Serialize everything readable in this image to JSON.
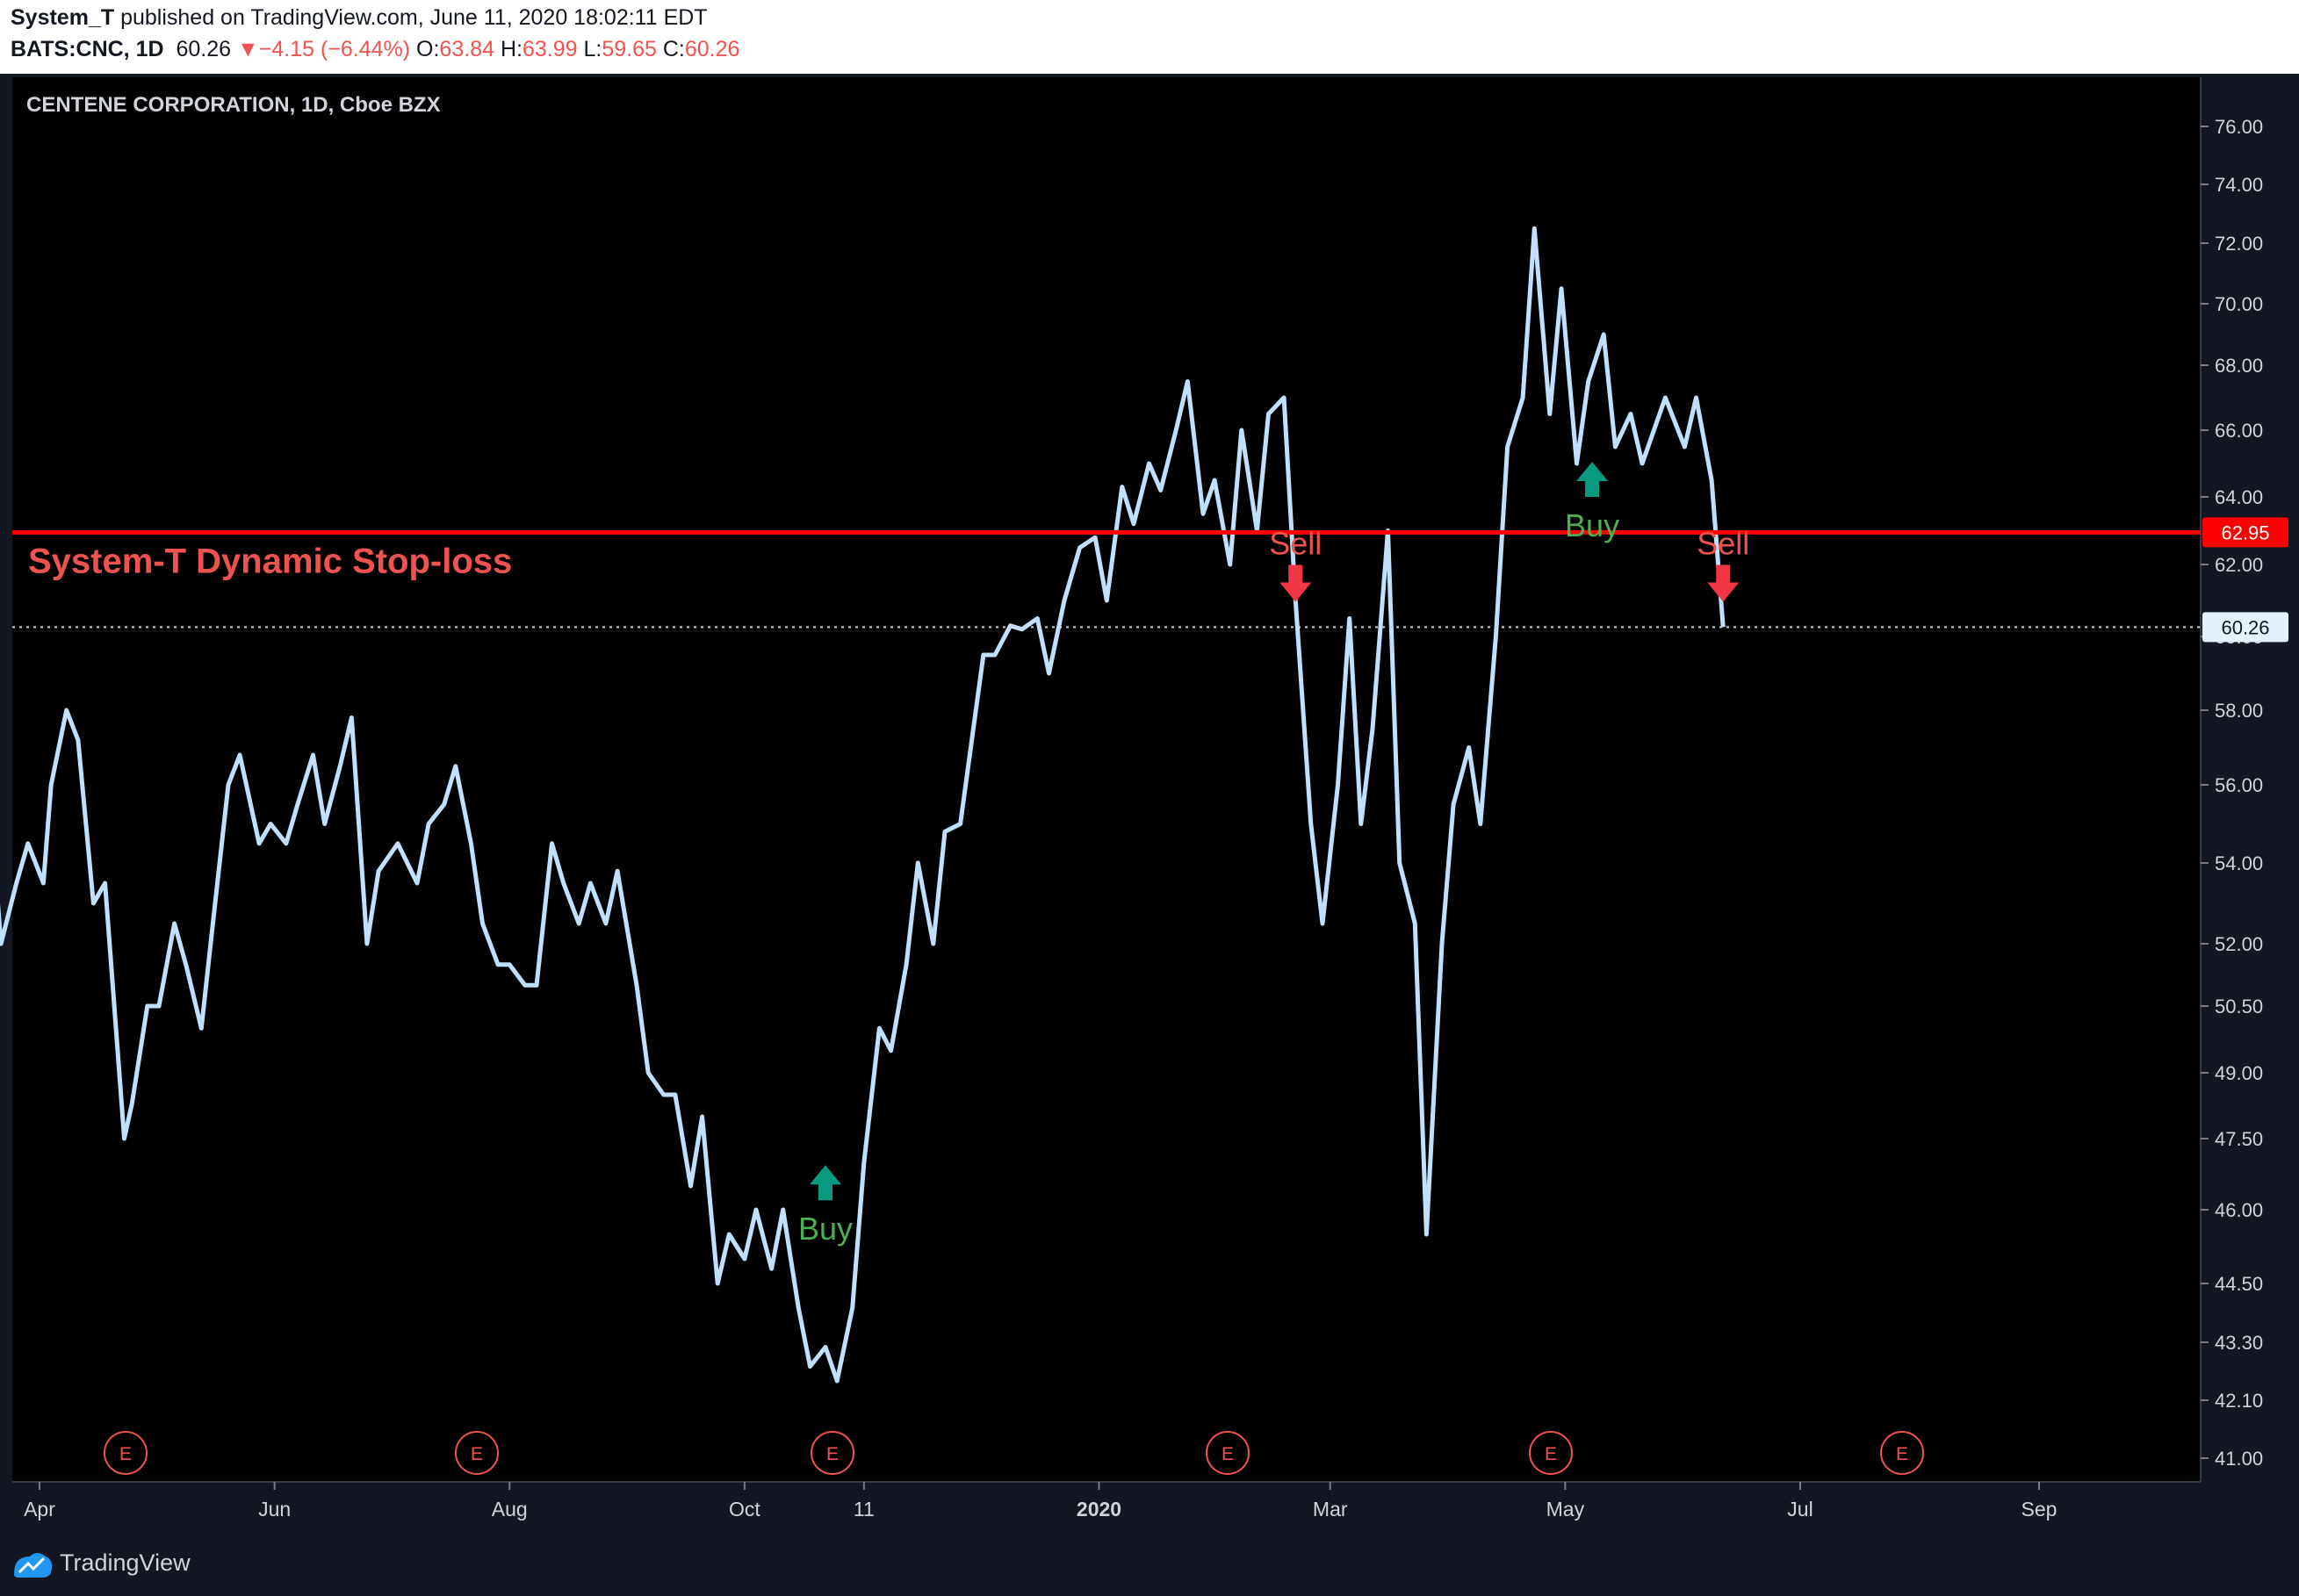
{
  "header": {
    "author": "System_T",
    "published": " published on TradingView.com, June 11, 2020 18:02:11 EDT",
    "symbol": "BATS:CNC, 1D",
    "last": "60.26",
    "change_arrow": "▼",
    "change": "−4.15 (−6.44%)",
    "o_label": "O:",
    "o": "63.84",
    "h_label": "H:",
    "h": "63.99",
    "l_label": "L:",
    "l": "59.65",
    "c_label": "C:",
    "c": "60.26"
  },
  "footer": {
    "brand": "TradingView",
    "logo_icon": "tradingview-logo-icon"
  },
  "chart_data": {
    "type": "line",
    "title": "CENTENE CORPORATION, 1D, Cboe BZX",
    "annotation_text": "System-T Dynamic Stop-loss",
    "stop_loss": 62.95,
    "stop_loss_label": "62.95",
    "last_price": 60.26,
    "last_price_label": "60.26",
    "y_ticks": [
      "76.00",
      "74.00",
      "72.00",
      "70.00",
      "68.00",
      "66.00",
      "64.00",
      "62.00",
      "60.00",
      "58.00",
      "56.00",
      "54.00",
      "52.00",
      "50.50",
      "49.00",
      "47.50",
      "46.00",
      "44.50",
      "43.30",
      "42.10",
      "41.00"
    ],
    "x_ticks": [
      "Apr",
      "Jun",
      "Aug",
      "Oct",
      "11",
      "2020",
      "Mar",
      "May",
      "Jul",
      "Sep"
    ],
    "earnings_marker": "E",
    "earnings_count": 6,
    "signals": [
      {
        "label": "Buy",
        "date": "2019-10-22",
        "price": 46.2
      },
      {
        "label": "Sell",
        "date": "2020-02-21",
        "price": 61.5
      },
      {
        "label": "Buy",
        "date": "2020-05-08",
        "price": 64.0
      },
      {
        "label": "Sell",
        "date": "2020-06-11",
        "price": 61.5
      }
    ],
    "series": [
      {
        "points": [
          [
            "2019-03-18",
            57.0
          ],
          [
            "2019-03-22",
            52.0
          ],
          [
            "2019-03-26",
            53.5
          ],
          [
            "2019-03-29",
            54.5
          ],
          [
            "2019-04-02",
            53.5
          ],
          [
            "2019-04-04",
            56.0
          ],
          [
            "2019-04-08",
            58.0
          ],
          [
            "2019-04-11",
            57.2
          ],
          [
            "2019-04-15",
            53.0
          ],
          [
            "2019-04-18",
            53.5
          ],
          [
            "2019-04-23",
            47.5
          ],
          [
            "2019-04-25",
            48.3
          ],
          [
            "2019-04-29",
            50.5
          ],
          [
            "2019-05-02",
            50.5
          ],
          [
            "2019-05-06",
            52.5
          ],
          [
            "2019-05-09",
            51.5
          ],
          [
            "2019-05-13",
            50.0
          ],
          [
            "2019-05-16",
            52.5
          ],
          [
            "2019-05-20",
            56.0
          ],
          [
            "2019-05-23",
            56.8
          ],
          [
            "2019-05-28",
            54.5
          ],
          [
            "2019-05-31",
            55.0
          ],
          [
            "2019-06-04",
            54.5
          ],
          [
            "2019-06-07",
            55.5
          ],
          [
            "2019-06-11",
            56.8
          ],
          [
            "2019-06-14",
            55.0
          ],
          [
            "2019-06-18",
            56.5
          ],
          [
            "2019-06-21",
            57.8
          ],
          [
            "2019-06-25",
            52.0
          ],
          [
            "2019-06-28",
            53.8
          ],
          [
            "2019-07-03",
            54.5
          ],
          [
            "2019-07-08",
            53.5
          ],
          [
            "2019-07-11",
            55.0
          ],
          [
            "2019-07-15",
            55.5
          ],
          [
            "2019-07-18",
            56.5
          ],
          [
            "2019-07-22",
            54.5
          ],
          [
            "2019-07-25",
            52.5
          ],
          [
            "2019-07-29",
            51.5
          ],
          [
            "2019-08-01",
            51.5
          ],
          [
            "2019-08-05",
            51.0
          ],
          [
            "2019-08-08",
            51.0
          ],
          [
            "2019-08-12",
            54.5
          ],
          [
            "2019-08-15",
            53.5
          ],
          [
            "2019-08-19",
            52.5
          ],
          [
            "2019-08-22",
            53.5
          ],
          [
            "2019-08-26",
            52.5
          ],
          [
            "2019-08-29",
            53.8
          ],
          [
            "2019-09-03",
            51.0
          ],
          [
            "2019-09-06",
            49.0
          ],
          [
            "2019-09-10",
            48.5
          ],
          [
            "2019-09-13",
            48.5
          ],
          [
            "2019-09-17",
            46.5
          ],
          [
            "2019-09-20",
            48.0
          ],
          [
            "2019-09-24",
            44.5
          ],
          [
            "2019-09-27",
            45.5
          ],
          [
            "2019-10-01",
            45.0
          ],
          [
            "2019-10-04",
            46.0
          ],
          [
            "2019-10-08",
            44.8
          ],
          [
            "2019-10-11",
            46.0
          ],
          [
            "2019-10-15",
            44.0
          ],
          [
            "2019-10-18",
            42.8
          ],
          [
            "2019-10-22",
            43.2
          ],
          [
            "2019-10-25",
            42.5
          ],
          [
            "2019-10-29",
            44.0
          ],
          [
            "2019-11-01",
            47.0
          ],
          [
            "2019-11-05",
            50.0
          ],
          [
            "2019-11-08",
            49.5
          ],
          [
            "2019-11-12",
            51.5
          ],
          [
            "2019-11-15",
            54.0
          ],
          [
            "2019-11-19",
            52.0
          ],
          [
            "2019-11-22",
            54.8
          ],
          [
            "2019-11-26",
            55.0
          ],
          [
            "2019-12-02",
            59.5
          ],
          [
            "2019-12-05",
            59.5
          ],
          [
            "2019-12-09",
            60.3
          ],
          [
            "2019-12-12",
            60.2
          ],
          [
            "2019-12-16",
            60.5
          ],
          [
            "2019-12-19",
            59.0
          ],
          [
            "2019-12-23",
            61.0
          ],
          [
            "2019-12-27",
            62.5
          ],
          [
            "2019-12-31",
            62.8
          ],
          [
            "2020-01-03",
            61.0
          ],
          [
            "2020-01-07",
            64.3
          ],
          [
            "2020-01-10",
            63.2
          ],
          [
            "2020-01-14",
            65.0
          ],
          [
            "2020-01-17",
            64.2
          ],
          [
            "2020-01-21",
            66.0
          ],
          [
            "2020-01-24",
            67.5
          ],
          [
            "2020-01-28",
            63.5
          ],
          [
            "2020-01-31",
            64.5
          ],
          [
            "2020-02-04",
            62.0
          ],
          [
            "2020-02-07",
            66.0
          ],
          [
            "2020-02-11",
            63.0
          ],
          [
            "2020-02-14",
            66.5
          ],
          [
            "2020-02-18",
            67.0
          ],
          [
            "2020-02-21",
            61.0
          ],
          [
            "2020-02-25",
            55.0
          ],
          [
            "2020-02-28",
            52.5
          ],
          [
            "2020-03-03",
            56.0
          ],
          [
            "2020-03-06",
            60.5
          ],
          [
            "2020-03-09",
            55.0
          ],
          [
            "2020-03-12",
            57.5
          ],
          [
            "2020-03-16",
            63.0
          ],
          [
            "2020-03-19",
            54.0
          ],
          [
            "2020-03-23",
            52.5
          ],
          [
            "2020-03-26",
            45.5
          ],
          [
            "2020-03-30",
            52.0
          ],
          [
            "2020-04-02",
            55.5
          ],
          [
            "2020-04-06",
            57.0
          ],
          [
            "2020-04-09",
            55.0
          ],
          [
            "2020-04-13",
            60.0
          ],
          [
            "2020-04-16",
            65.5
          ],
          [
            "2020-04-20",
            67.0
          ],
          [
            "2020-04-23",
            72.5
          ],
          [
            "2020-04-27",
            66.5
          ],
          [
            "2020-04-30",
            70.5
          ],
          [
            "2020-05-04",
            65.0
          ],
          [
            "2020-05-07",
            67.5
          ],
          [
            "2020-05-11",
            69.0
          ],
          [
            "2020-05-14",
            65.5
          ],
          [
            "2020-05-18",
            66.5
          ],
          [
            "2020-05-21",
            65.0
          ],
          [
            "2020-05-27",
            67.0
          ],
          [
            "2020-06-01",
            65.5
          ],
          [
            "2020-06-04",
            67.0
          ],
          [
            "2020-06-08",
            64.5
          ],
          [
            "2020-06-11",
            60.26
          ]
        ]
      }
    ]
  }
}
